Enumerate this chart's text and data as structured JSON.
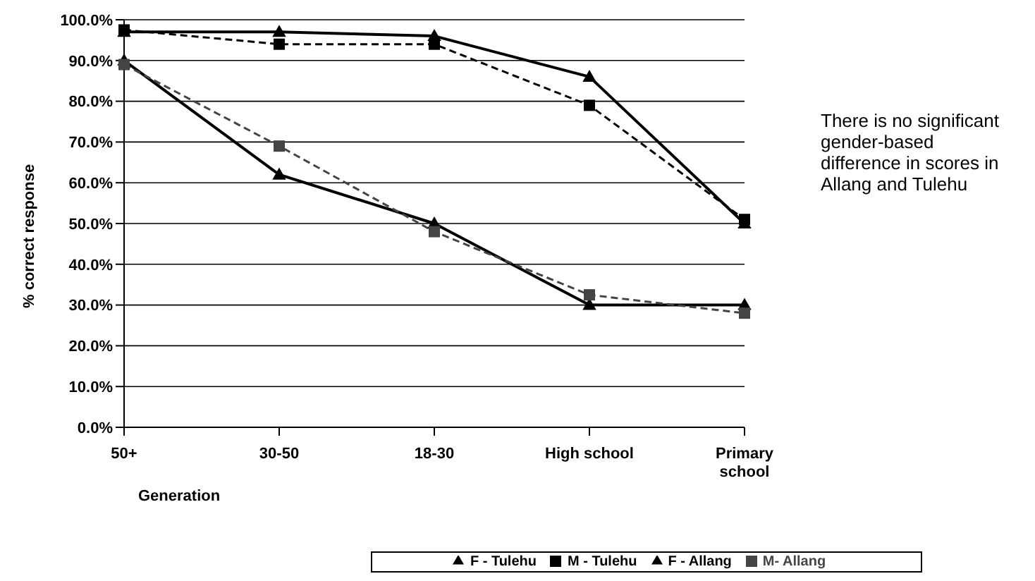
{
  "chart_data": {
    "type": "line",
    "categories": [
      "50+",
      "30-50",
      "18-30",
      "High school",
      "Primary school"
    ],
    "xlabel": "Generation",
    "ylabel": "% correct response",
    "ylim": [
      0,
      100
    ],
    "yticks": [
      {
        "value": 0,
        "label": "0.0%"
      },
      {
        "value": 10,
        "label": "10.0%"
      },
      {
        "value": 20,
        "label": "20.0%"
      },
      {
        "value": 30,
        "label": "30.0%"
      },
      {
        "value": 40,
        "label": "40.0%"
      },
      {
        "value": 50,
        "label": "50.0%"
      },
      {
        "value": 60,
        "label": "60.0%"
      },
      {
        "value": 70,
        "label": "70.0%"
      },
      {
        "value": 80,
        "label": "80.0%"
      },
      {
        "value": 90,
        "label": "90.0%"
      },
      {
        "value": 100,
        "label": "100.0%"
      }
    ],
    "grid": "y",
    "legend": "bottom",
    "annotations": [
      "There is no significant gender-based difference in scores in Allang and Tulehu"
    ],
    "series": [
      {
        "name": "F - Tulehu",
        "color": "#000000",
        "marker": "triangle",
        "line_style": "solid",
        "values": [
          97,
          97,
          96,
          86,
          50
        ]
      },
      {
        "name": "M - Tulehu",
        "color": "#000000",
        "marker": "square",
        "line_style": "dashed",
        "values": [
          97.5,
          94,
          94,
          79,
          51
        ]
      },
      {
        "name": "F - Allang",
        "color": "#000000",
        "marker": "triangle",
        "line_style": "solid",
        "values": [
          90,
          62,
          50,
          30,
          30
        ]
      },
      {
        "name": "M- Allang",
        "color": "#444444",
        "marker": "square",
        "line_style": "dashed",
        "values": [
          89,
          69,
          48,
          32.5,
          28
        ]
      }
    ]
  }
}
